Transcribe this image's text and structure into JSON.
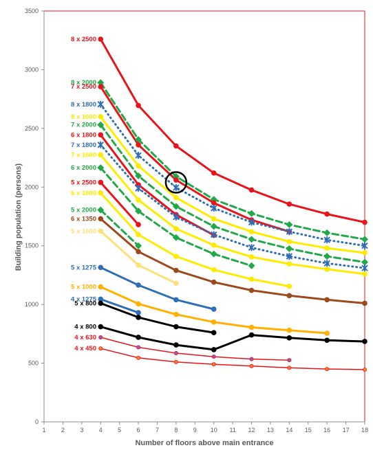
{
  "chart_data": {
    "type": "line",
    "title": "",
    "xlabel": "Number of floors above main entrance",
    "ylabel": "Building population (persons)",
    "xlim": [
      1,
      18
    ],
    "ylim": [
      0,
      3500
    ],
    "x_ticks": [
      1,
      2,
      3,
      4,
      5,
      6,
      7,
      8,
      9,
      10,
      11,
      12,
      13,
      14,
      15,
      16,
      17,
      18
    ],
    "y_ticks": [
      0,
      500,
      1000,
      1500,
      2000,
      2500,
      3000,
      3500
    ],
    "grid": false,
    "highlight_circle": {
      "x": 8,
      "y": 2040
    },
    "series": [
      {
        "name": "8 x 2500",
        "color": "#e8141b",
        "style": "solid",
        "marker": "circle",
        "width": 3,
        "x": [
          4,
          6,
          8,
          10,
          12,
          14,
          16,
          18
        ],
        "y": [
          3260,
          2695,
          2350,
          2120,
          1975,
          1855,
          1770,
          1700
        ]
      },
      {
        "name": "8 x 2000",
        "color": "#22a84a",
        "style": "dashed",
        "marker": "diamond",
        "width": 3,
        "x": [
          4,
          6,
          8,
          10,
          12,
          14,
          16,
          18
        ],
        "y": [
          2890,
          2405,
          2090,
          1895,
          1775,
          1680,
          1610,
          1555
        ]
      },
      {
        "name": "7 x 2500",
        "color": "#e8141b",
        "style": "solid",
        "marker": "circle",
        "width": 3,
        "x": [
          4,
          6,
          8,
          10,
          12,
          14
        ],
        "y": [
          2855,
          2360,
          2060,
          1865,
          1720,
          1620
        ]
      },
      {
        "name": "8 x 1800",
        "color": "#2f6eb5",
        "style": "dotted",
        "marker": "star",
        "width": 3,
        "x": [
          4,
          6,
          8,
          10,
          12,
          14,
          16,
          18
        ],
        "y": [
          2705,
          2270,
          1995,
          1820,
          1700,
          1620,
          1550,
          1500
        ]
      },
      {
        "name": "8 x 1600",
        "color": "#ffeb00",
        "style": "solid",
        "marker": "circle",
        "width": 3,
        "x": [
          4,
          6,
          8,
          10,
          12,
          14,
          16,
          18
        ],
        "y": [
          2600,
          2180,
          1910,
          1730,
          1620,
          1535,
          1480,
          1440
        ]
      },
      {
        "name": "7 x 2000",
        "color": "#22a84a",
        "style": "dashed",
        "marker": "diamond",
        "width": 3,
        "x": [
          4,
          6,
          8,
          10,
          12,
          14,
          16,
          18
        ],
        "y": [
          2530,
          2095,
          1835,
          1665,
          1555,
          1475,
          1410,
          1360
        ]
      },
      {
        "name": "6 x 1800",
        "color": "#e8141b",
        "style": "solid",
        "marker": "circle",
        "width": 3,
        "x": [
          4,
          6,
          8,
          10
        ],
        "y": [
          2445,
          2020,
          1765,
          1590
        ]
      },
      {
        "name": "7 x 1800",
        "color": "#2f6eb5",
        "style": "dotted",
        "marker": "star",
        "width": 3,
        "x": [
          4,
          6,
          8,
          10,
          12,
          14,
          16,
          18
        ],
        "y": [
          2360,
          1990,
          1745,
          1595,
          1485,
          1410,
          1350,
          1310
        ]
      },
      {
        "name": "7 x 1600",
        "color": "#ffeb00",
        "style": "solid",
        "marker": "circle",
        "width": 3,
        "x": [
          4,
          6,
          8,
          10,
          12,
          14,
          16,
          18
        ],
        "y": [
          2275,
          1890,
          1645,
          1505,
          1405,
          1345,
          1300,
          1260
        ]
      },
      {
        "name": "6 x 2000",
        "color": "#22a84a",
        "style": "dashed",
        "marker": "diamond",
        "width": 3,
        "x": [
          4,
          6,
          8,
          10,
          12
        ],
        "y": [
          2165,
          1795,
          1570,
          1430,
          1330
        ]
      },
      {
        "name": "5 x 2500",
        "color": "#e8141b",
        "style": "solid",
        "marker": "circle",
        "width": 3,
        "x": [
          4,
          6
        ],
        "y": [
          2040,
          1680
        ]
      },
      {
        "name": "6 x 1600",
        "color": "#ffeb00",
        "style": "solid",
        "marker": "circle",
        "width": 3,
        "x": [
          4,
          6,
          8,
          10,
          12,
          14
        ],
        "y": [
          1950,
          1595,
          1410,
          1295,
          1215,
          1155
        ]
      },
      {
        "name": "5 x 2000",
        "color": "#22a84a",
        "style": "dashed",
        "marker": "diamond",
        "width": 3,
        "x": [
          4,
          6
        ],
        "y": [
          1805,
          1500
        ]
      },
      {
        "name": "6 x 1350",
        "color": "#9c4a1c",
        "style": "solid",
        "marker": "circle",
        "width": 3,
        "x": [
          4,
          6,
          8,
          10,
          12,
          14,
          16,
          18
        ],
        "y": [
          1730,
          1450,
          1290,
          1190,
          1120,
          1075,
          1040,
          1010
        ]
      },
      {
        "name": "5 x 1600",
        "color": "#ffe17a",
        "style": "solid",
        "marker": "circle",
        "width": 3,
        "x": [
          4,
          6,
          8
        ],
        "y": [
          1625,
          1335,
          1180
        ]
      },
      {
        "name": "5 x 1275",
        "color": "#2f6eb5",
        "style": "solid",
        "marker": "circle",
        "width": 3,
        "x": [
          4,
          6,
          8,
          10
        ],
        "y": [
          1315,
          1165,
          1040,
          960
        ]
      },
      {
        "name": "5 x 1000",
        "color": "#ffb000",
        "style": "solid",
        "marker": "circle",
        "width": 3,
        "x": [
          4,
          6,
          8,
          10,
          12,
          14,
          16
        ],
        "y": [
          1150,
          1005,
          915,
          850,
          805,
          780,
          755
        ]
      },
      {
        "name": "4 x 1275",
        "color": "#2f6eb5",
        "style": "solid",
        "marker": "circle",
        "width": 3,
        "x": [
          4,
          6
        ],
        "y": [
          1045,
          930
        ]
      },
      {
        "name": "5 x 800",
        "color": "#000000",
        "style": "solid",
        "marker": "circle",
        "width": 3,
        "x": [
          4,
          6,
          8,
          10
        ],
        "y": [
          1010,
          890,
          810,
          760
        ]
      },
      {
        "name": "4 x 800",
        "color": "#000000",
        "style": "solid",
        "marker": "circle",
        "width": 3,
        "x": [
          4,
          6,
          8,
          10,
          12,
          14,
          16,
          18
        ],
        "y": [
          810,
          720,
          655,
          615,
          740,
          715,
          695,
          685
        ]
      },
      {
        "name": "4 x 630",
        "color": "#e8141b",
        "style": "solid",
        "marker": "circle-purple",
        "width": 1.5,
        "x": [
          4,
          6,
          8,
          10,
          12,
          14
        ],
        "y": [
          720,
          635,
          585,
          555,
          535,
          525
        ]
      },
      {
        "name": "4 x 450",
        "color": "#e8141b",
        "style": "solid",
        "marker": "circle-orange",
        "width": 1.5,
        "x": [
          4,
          6,
          8,
          10,
          12,
          14,
          16,
          18
        ],
        "y": [
          625,
          545,
          510,
          490,
          475,
          460,
          450,
          445
        ]
      }
    ]
  }
}
